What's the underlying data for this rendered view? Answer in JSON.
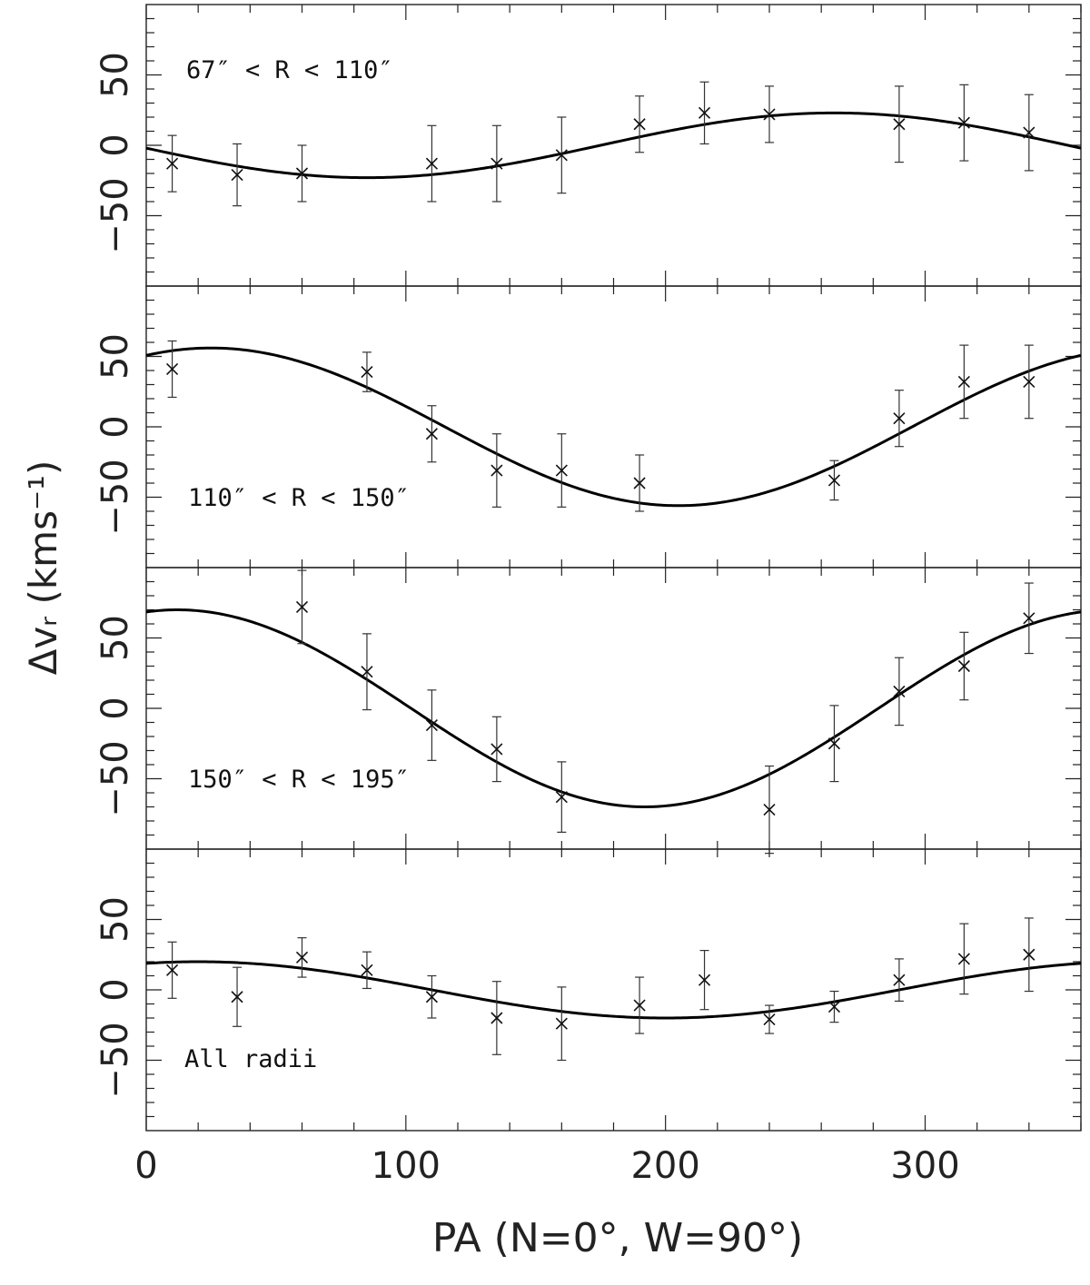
{
  "chart_data": [
    {
      "type": "scatter",
      "panel_label": "67″ < R < 110″",
      "xlim": [
        0,
        360
      ],
      "ylim": [
        -100,
        100
      ],
      "y_ticks": [
        -50,
        0,
        50
      ],
      "points": [
        {
          "x": 10,
          "y": -13,
          "err": 20
        },
        {
          "x": 35,
          "y": -21,
          "err": 22
        },
        {
          "x": 60,
          "y": -20,
          "err": 20
        },
        {
          "x": 110,
          "y": -13,
          "err": 27
        },
        {
          "x": 135,
          "y": -13,
          "err": 27
        },
        {
          "x": 160,
          "y": -7,
          "err": 27
        },
        {
          "x": 190,
          "y": 15,
          "err": 20
        },
        {
          "x": 215,
          "y": 23,
          "err": 22
        },
        {
          "x": 240,
          "y": 22,
          "err": 20
        },
        {
          "x": 290,
          "y": 15,
          "err": 27
        },
        {
          "x": 315,
          "y": 16,
          "err": 27
        },
        {
          "x": 340,
          "y": 9,
          "err": 27
        }
      ],
      "model": {
        "amplitude": 23,
        "phase_deg": 265
      }
    },
    {
      "type": "scatter",
      "panel_label": "110″ < R < 150″",
      "xlim": [
        0,
        360
      ],
      "ylim": [
        -100,
        100
      ],
      "y_ticks": [
        -50,
        0,
        50
      ],
      "points": [
        {
          "x": 10,
          "y": 41,
          "err": 20
        },
        {
          "x": 85,
          "y": 39,
          "err": 14
        },
        {
          "x": 110,
          "y": -5,
          "err": 20
        },
        {
          "x": 135,
          "y": -31,
          "err": 26
        },
        {
          "x": 160,
          "y": -31,
          "err": 26
        },
        {
          "x": 190,
          "y": -40,
          "err": 20
        },
        {
          "x": 265,
          "y": -38,
          "err": 14
        },
        {
          "x": 290,
          "y": 6,
          "err": 20
        },
        {
          "x": 315,
          "y": 32,
          "err": 26
        },
        {
          "x": 340,
          "y": 32,
          "err": 26
        }
      ],
      "model": {
        "amplitude": 56,
        "phase_deg": 25
      }
    },
    {
      "type": "scatter",
      "panel_label": "150″ < R < 195″",
      "xlim": [
        0,
        360
      ],
      "ylim": [
        -100,
        100
      ],
      "y_ticks": [
        -50,
        0,
        50
      ],
      "points": [
        {
          "x": 60,
          "y": 72,
          "err": 26
        },
        {
          "x": 85,
          "y": 26,
          "err": 27
        },
        {
          "x": 110,
          "y": -12,
          "err": 25
        },
        {
          "x": 135,
          "y": -29,
          "err": 23
        },
        {
          "x": 160,
          "y": -63,
          "err": 25
        },
        {
          "x": 240,
          "y": -72,
          "err": 31
        },
        {
          "x": 265,
          "y": -25,
          "err": 27
        },
        {
          "x": 290,
          "y": 12,
          "err": 24
        },
        {
          "x": 315,
          "y": 30,
          "err": 24
        },
        {
          "x": 340,
          "y": 64,
          "err": 25
        }
      ],
      "model": {
        "amplitude": 70,
        "phase_deg": 12
      }
    },
    {
      "type": "scatter",
      "panel_label": "All radii",
      "xlim": [
        0,
        360
      ],
      "ylim": [
        -100,
        100
      ],
      "y_ticks": [
        -50,
        0,
        50
      ],
      "points": [
        {
          "x": 10,
          "y": 14,
          "err": 20
        },
        {
          "x": 35,
          "y": -5,
          "err": 21
        },
        {
          "x": 60,
          "y": 23,
          "err": 14
        },
        {
          "x": 85,
          "y": 14,
          "err": 13
        },
        {
          "x": 110,
          "y": -5,
          "err": 15
        },
        {
          "x": 135,
          "y": -20,
          "err": 26
        },
        {
          "x": 160,
          "y": -24,
          "err": 26
        },
        {
          "x": 190,
          "y": -11,
          "err": 20
        },
        {
          "x": 215,
          "y": 7,
          "err": 21
        },
        {
          "x": 240,
          "y": -21,
          "err": 10
        },
        {
          "x": 265,
          "y": -12,
          "err": 11
        },
        {
          "x": 290,
          "y": 7,
          "err": 15
        },
        {
          "x": 315,
          "y": 22,
          "err": 25
        },
        {
          "x": 340,
          "y": 25,
          "err": 26
        }
      ],
      "model": {
        "amplitude": 20,
        "phase_deg": 20
      }
    }
  ],
  "axes": {
    "ylabel": "Δvᵣ (kms⁻¹)",
    "xlabel": "PA (N=0°, W=90°)",
    "x_ticks": [
      0,
      100,
      200,
      300
    ]
  },
  "colors": {
    "axis": "#222222",
    "curve": "#000000",
    "marker": "#111111",
    "errorbar": "#333333"
  }
}
